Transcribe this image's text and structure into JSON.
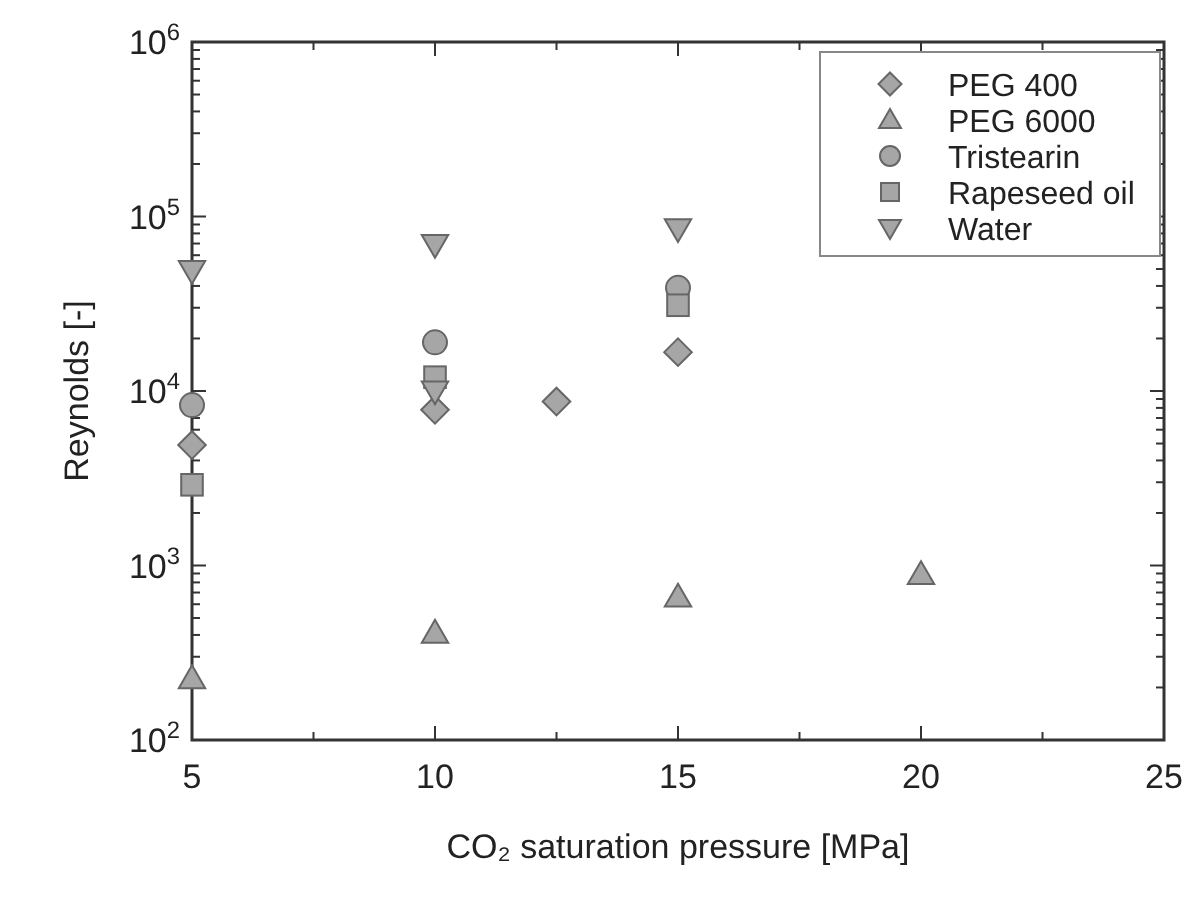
{
  "chart_data": {
    "type": "scatter",
    "xlabel": "CO₂ saturation pressure [MPa]",
    "ylabel": "Reynolds [-]",
    "log": "y",
    "grid": false,
    "legend": "top right",
    "xlim": [
      5,
      25
    ],
    "xticks": [
      5,
      {
        "value": 7.5,
        "label": null
      },
      10,
      {
        "value": 12.5,
        "label": null
      },
      15,
      {
        "value": 17.5,
        "label": null
      },
      20,
      {
        "value": 22.5,
        "label": null
      },
      25
    ],
    "ylim": [
      100,
      1000000
    ],
    "yticks": [
      {
        "value": 100,
        "label": "10$^{2}$"
      },
      {
        "value": 200,
        "label": null
      },
      {
        "value": 300,
        "label": null
      },
      {
        "value": 400,
        "label": null
      },
      {
        "value": 500,
        "label": null
      },
      {
        "value": 600,
        "label": null
      },
      {
        "value": 700,
        "label": null
      },
      {
        "value": 800,
        "label": null
      },
      {
        "value": 900,
        "label": null
      },
      {
        "value": 1000,
        "label": "10$^{3}$"
      },
      {
        "value": 2000,
        "label": null
      },
      {
        "value": 3000,
        "label": null
      },
      {
        "value": 4000,
        "label": null
      },
      {
        "value": 5000,
        "label": null
      },
      {
        "value": 6000,
        "label": null
      },
      {
        "value": 7000,
        "label": null
      },
      {
        "value": 8000,
        "label": null
      },
      {
        "value": 9000,
        "label": null
      },
      {
        "value": 10000,
        "label": "10$^{4}$"
      },
      {
        "value": 20000,
        "label": null
      },
      {
        "value": 30000,
        "label": null
      },
      {
        "value": 40000,
        "label": null
      },
      {
        "value": 50000,
        "label": null
      },
      {
        "value": 60000,
        "label": null
      },
      {
        "value": 70000,
        "label": null
      },
      {
        "value": 80000,
        "label": null
      },
      {
        "value": 90000,
        "label": null
      },
      {
        "value": 100000,
        "label": "10$^{5}$"
      },
      {
        "value": 200000,
        "label": null
      },
      {
        "value": 300000,
        "label": null
      },
      {
        "value": 400000,
        "label": null
      },
      {
        "value": 500000,
        "label": null
      },
      {
        "value": 600000,
        "label": null
      },
      {
        "value": 700000,
        "label": null
      },
      {
        "value": 800000,
        "label": null
      },
      {
        "value": 900000,
        "label": null
      },
      {
        "value": 1000000,
        "label": "10$^{6}$"
      }
    ],
    "series": [
      {
        "name": "PEG 400",
        "color": "#a6a6a6",
        "marker": "diamond",
        "x": [
          5,
          10,
          12.5,
          15
        ],
        "values": [
          4900,
          7800,
          8700,
          16700
        ]
      },
      {
        "name": "PEG 6000",
        "color": "#a6a6a6",
        "marker": "triangle",
        "x": [
          5,
          10,
          15,
          20
        ],
        "values": [
          225,
          410,
          660,
          890
        ]
      },
      {
        "name": "Tristearin",
        "color": "#a6a6a6",
        "marker": "circle",
        "x": [
          5,
          10,
          15
        ],
        "values": [
          8300,
          19000,
          39000
        ]
      },
      {
        "name": "Rapeseed oil",
        "color": "#a6a6a6",
        "marker": "square",
        "x": [
          5,
          10,
          15
        ],
        "values": [
          2900,
          12000,
          31000
        ]
      },
      {
        "name": "Water",
        "color": "#a6a6a6",
        "marker": "triangle-down",
        "x": [
          5,
          10,
          10,
          15
        ],
        "values": [
          49000,
          69000,
          10000,
          85000
        ]
      }
    ]
  }
}
